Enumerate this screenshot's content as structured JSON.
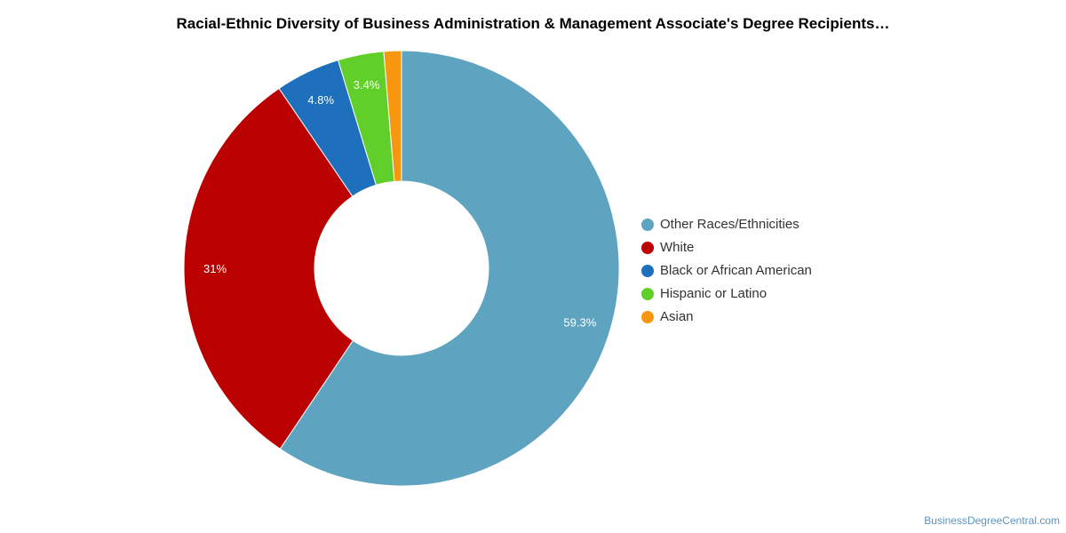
{
  "chart_data": {
    "type": "pie",
    "title": "Racial-Ethnic Diversity of Business Administration & Management Associate's Degree Recipients…",
    "donut": true,
    "legend_position": "right",
    "slices": [
      {
        "name": "Other Races/Ethnicities",
        "value": 59.3,
        "label": "59.3%",
        "color": "#5ea3c0"
      },
      {
        "name": "White",
        "value": 31,
        "label": "31%",
        "color": "#bb0000"
      },
      {
        "name": "Black or African American",
        "value": 4.8,
        "label": "4.8%",
        "color": "#1f70bc"
      },
      {
        "name": "Hispanic or Latino",
        "value": 3.4,
        "label": "3.4%",
        "color": "#61cf29"
      },
      {
        "name": "Asian",
        "value": 1.3,
        "label": "",
        "color": "#f7970f"
      }
    ]
  },
  "credit": "BusinessDegreeCentral.com"
}
